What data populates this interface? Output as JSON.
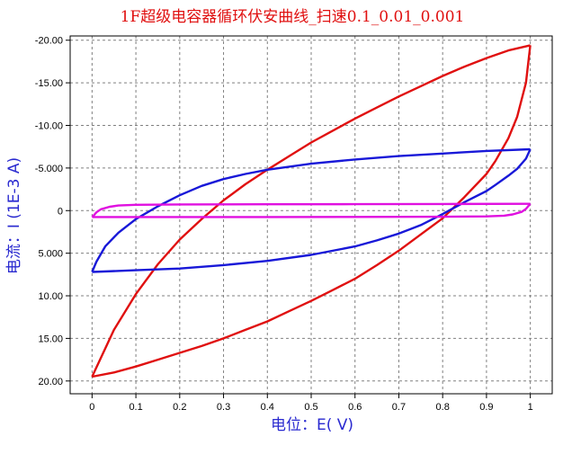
{
  "chart_data": {
    "type": "line",
    "title": "1F超级电容器循环伏安曲线_扫速0.1_0.01_0.001",
    "xlabel": "电位：E( V)",
    "ylabel": "电流：I (1E-3 A)",
    "xlim": [
      -0.05,
      1.05
    ],
    "ylim": [
      -20.5,
      21.5
    ],
    "y_axis_inverted": true,
    "grid": true,
    "x_ticks": [
      0,
      0.1,
      0.2,
      0.3,
      0.4,
      0.5,
      0.6,
      0.7,
      0.8,
      0.9,
      1
    ],
    "x_tick_labels": [
      "0",
      "0.1",
      "0.2",
      "0.3",
      "0.4",
      "0.5",
      "0.6",
      "0.7",
      "0.8",
      "0.9",
      "1"
    ],
    "y_ticks": [
      -20,
      -15,
      -10,
      -5,
      0,
      5,
      10,
      15,
      20
    ],
    "y_tick_labels": [
      "-20.00",
      "-15.00",
      "-10.00",
      "-5.000",
      "0",
      "5.000",
      "10.00",
      "15.00",
      "20.00"
    ],
    "series": [
      {
        "color": "#e01010",
        "forward": {
          "x": [
            0,
            0.05,
            0.1,
            0.15,
            0.2,
            0.25,
            0.3,
            0.35,
            0.4,
            0.45,
            0.5,
            0.55,
            0.6,
            0.65,
            0.7,
            0.75,
            0.8,
            0.85,
            0.9,
            0.95,
            1
          ],
          "y": [
            19.5,
            14.0,
            9.8,
            6.3,
            3.4,
            1.0,
            -1.2,
            -3.1,
            -4.8,
            -6.4,
            -8.0,
            -9.4,
            -10.8,
            -12.1,
            -13.4,
            -14.6,
            -15.8,
            -16.9,
            -17.9,
            -18.8,
            -19.4
          ]
        },
        "reverse": {
          "x": [
            1,
            0.99,
            0.97,
            0.95,
            0.92,
            0.9,
            0.85,
            0.8,
            0.75,
            0.7,
            0.65,
            0.6,
            0.55,
            0.5,
            0.45,
            0.4,
            0.35,
            0.3,
            0.25,
            0.2,
            0.15,
            0.1,
            0.05,
            0
          ],
          "y": [
            -19.4,
            -15.0,
            -11.0,
            -8.5,
            -5.8,
            -4.3,
            -1.6,
            0.9,
            2.8,
            4.7,
            6.4,
            8.0,
            9.3,
            10.6,
            11.8,
            13.0,
            14.0,
            15.0,
            15.9,
            16.7,
            17.5,
            18.3,
            19.0,
            19.5
          ]
        }
      },
      {
        "color": "#1818d8",
        "forward": {
          "x": [
            0,
            0.01,
            0.03,
            0.06,
            0.1,
            0.15,
            0.2,
            0.25,
            0.3,
            0.35,
            0.4,
            0.5,
            0.6,
            0.7,
            0.8,
            0.9,
            1
          ],
          "y": [
            7.2,
            6.0,
            4.2,
            2.6,
            1.0,
            -0.5,
            -1.8,
            -2.9,
            -3.7,
            -4.3,
            -4.8,
            -5.5,
            -6.0,
            -6.4,
            -6.7,
            -7.0,
            -7.2
          ]
        },
        "reverse": {
          "x": [
            1,
            0.99,
            0.97,
            0.95,
            0.92,
            0.9,
            0.85,
            0.8,
            0.75,
            0.7,
            0.65,
            0.6,
            0.5,
            0.4,
            0.3,
            0.2,
            0.1,
            0
          ],
          "y": [
            -7.2,
            -6.1,
            -4.9,
            -4.1,
            -3.0,
            -2.3,
            -1.0,
            0.4,
            1.7,
            2.7,
            3.5,
            4.2,
            5.2,
            5.9,
            6.4,
            6.8,
            7.0,
            7.2
          ]
        }
      },
      {
        "color": "#e010e0",
        "forward": {
          "x": [
            0,
            0.005,
            0.01,
            0.02,
            0.04,
            0.06,
            0.1,
            0.2,
            0.4,
            0.6,
            0.8,
            1
          ],
          "y": [
            0.75,
            0.5,
            0.2,
            -0.15,
            -0.45,
            -0.6,
            -0.68,
            -0.72,
            -0.74,
            -0.76,
            -0.78,
            -0.8
          ]
        },
        "reverse": {
          "x": [
            1,
            0.995,
            0.99,
            0.98,
            0.96,
            0.94,
            0.9,
            0.8,
            0.6,
            0.4,
            0.2,
            0
          ],
          "y": [
            -0.8,
            -0.5,
            -0.2,
            0.15,
            0.45,
            0.6,
            0.68,
            0.72,
            0.74,
            0.75,
            0.75,
            0.75
          ]
        }
      }
    ]
  }
}
